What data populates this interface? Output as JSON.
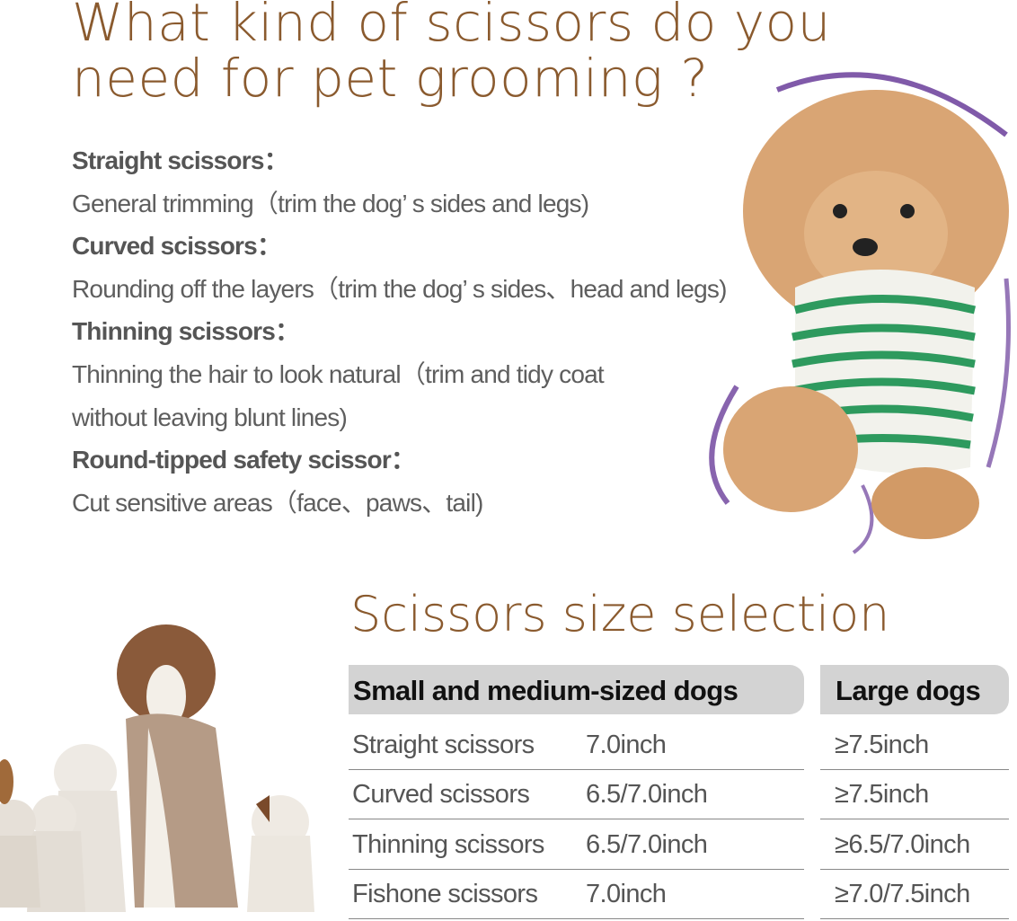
{
  "title_lines": [
    "What kind of scissors do you",
    "need for pet grooming ?"
  ],
  "scissor_types": [
    {
      "name": "Straight scissors",
      "description": [
        "General trimming（trim the dog’ s sides and legs)"
      ]
    },
    {
      "name": "Curved scissors",
      "description": [
        "Rounding off the layers（trim the dog’ s sides、head and legs)"
      ]
    },
    {
      "name": "Thinning scissors",
      "description": [
        "Thinning the hair to look natural（trim and tidy coat",
        "without leaving blunt lines)"
      ]
    },
    {
      "name": "Round-tipped safety scissor",
      "description": [
        "Cut sensitive areas（face、paws、tail)"
      ]
    }
  ],
  "size_table": {
    "title": "Scissors size selection",
    "headers": [
      "Small and medium-sized dogs",
      "Large dogs"
    ],
    "rows": [
      {
        "type": "Straight scissors",
        "small_medium": "7.0inch",
        "large": "≥7.5inch"
      },
      {
        "type": "Curved scissors",
        "small_medium": "6.5/7.0inch",
        "large": "≥7.5inch"
      },
      {
        "type": "Thinning scissors",
        "small_medium": "6.5/7.0inch",
        "large": "≥6.5/7.0inch"
      },
      {
        "type": "Fishone scissors",
        "small_medium": "7.0inch",
        "large": "≥7.0/7.5inch"
      }
    ]
  },
  "colors": {
    "title": "#8a5a2e",
    "accent_arc": "#6a3d9a",
    "header_bar": "#d3d3d3"
  }
}
